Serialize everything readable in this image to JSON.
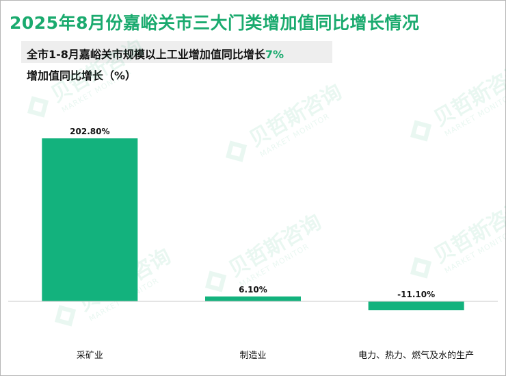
{
  "title": "2025年8月份嘉峪关市三大门类增加值同比增长情况",
  "note": {
    "prefix": "全市1-8月嘉峪关市规模以上工业增加值同比增长",
    "highlight": "7%"
  },
  "unit_label": "增加值同比增长（%）",
  "watermark": {
    "name": "贝哲斯咨询",
    "subtitle": "MARKET MONITOR"
  },
  "colors": {
    "bar": "#13b27d",
    "title": "#1aaa6e",
    "axis": "#c8c8c8"
  },
  "chart_data": {
    "type": "bar",
    "categories": [
      "采矿业",
      "制造业",
      "电力、热力、燃气及水的生产"
    ],
    "values": [
      202.8,
      6.1,
      -11.1
    ],
    "value_labels": [
      "202.80%",
      "6.10%",
      "-11.10%"
    ],
    "title": "2025年8月份嘉峪关市三大门类增加值同比增长情况",
    "ylabel": "增加值同比增长（%）",
    "ylim": [
      -15,
      210
    ],
    "grid": false,
    "legend": "none"
  }
}
